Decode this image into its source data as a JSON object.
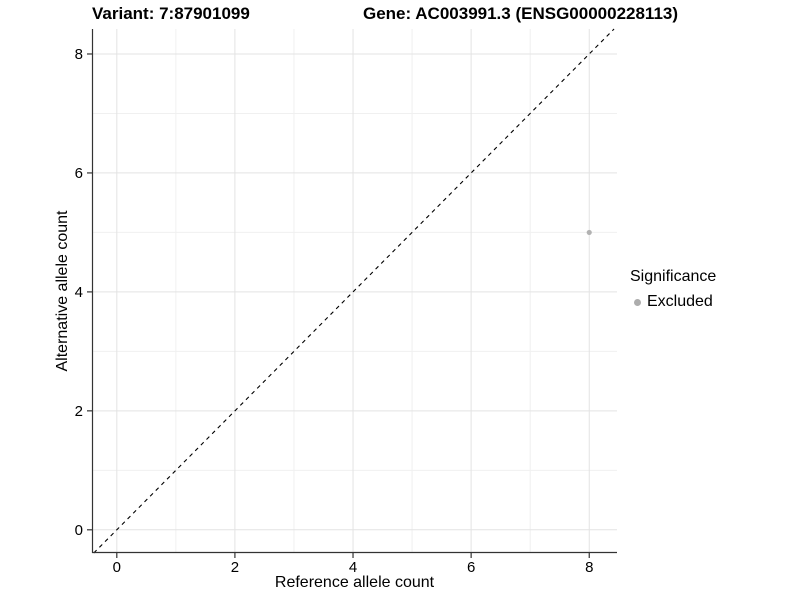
{
  "header": {
    "variant_title": "Variant: 7:87901099",
    "gene_title": "Gene: AC003991.3 (ENSG00000228113)"
  },
  "chart_data": {
    "type": "scatter",
    "titles": {
      "left": "Variant: 7:87901099",
      "right": "Gene: AC003991.3 (ENSG00000228113)"
    },
    "xlabel": "Reference allele count",
    "ylabel": "Alternative allele count",
    "xlim": [
      -0.42,
      8.47
    ],
    "ylim": [
      -0.39,
      8.42
    ],
    "x_ticks": [
      0,
      2,
      4,
      6,
      8
    ],
    "y_ticks": [
      0,
      2,
      4,
      6,
      8
    ],
    "x_minor_ticks": [
      1,
      3,
      5,
      7
    ],
    "y_minor_ticks": [
      1,
      3,
      5,
      7
    ],
    "grid": true,
    "identity_line": {
      "slope": 1,
      "intercept": 0,
      "style": "dashed",
      "color": "#000000"
    },
    "series": [
      {
        "name": "Excluded",
        "color": "#b2b2b2",
        "point_radius": 2.6,
        "points": [
          {
            "x": 8,
            "y": 5
          }
        ]
      }
    ],
    "legend": {
      "position": "right",
      "title": "Significance",
      "entries": [
        {
          "label": "Excluded",
          "color": "#adadad"
        }
      ]
    }
  },
  "colors": {
    "axis_line": "#333333",
    "grid_major": "#e3e3e3",
    "grid_minor": "#f0f0f0",
    "background": "#ffffff"
  }
}
